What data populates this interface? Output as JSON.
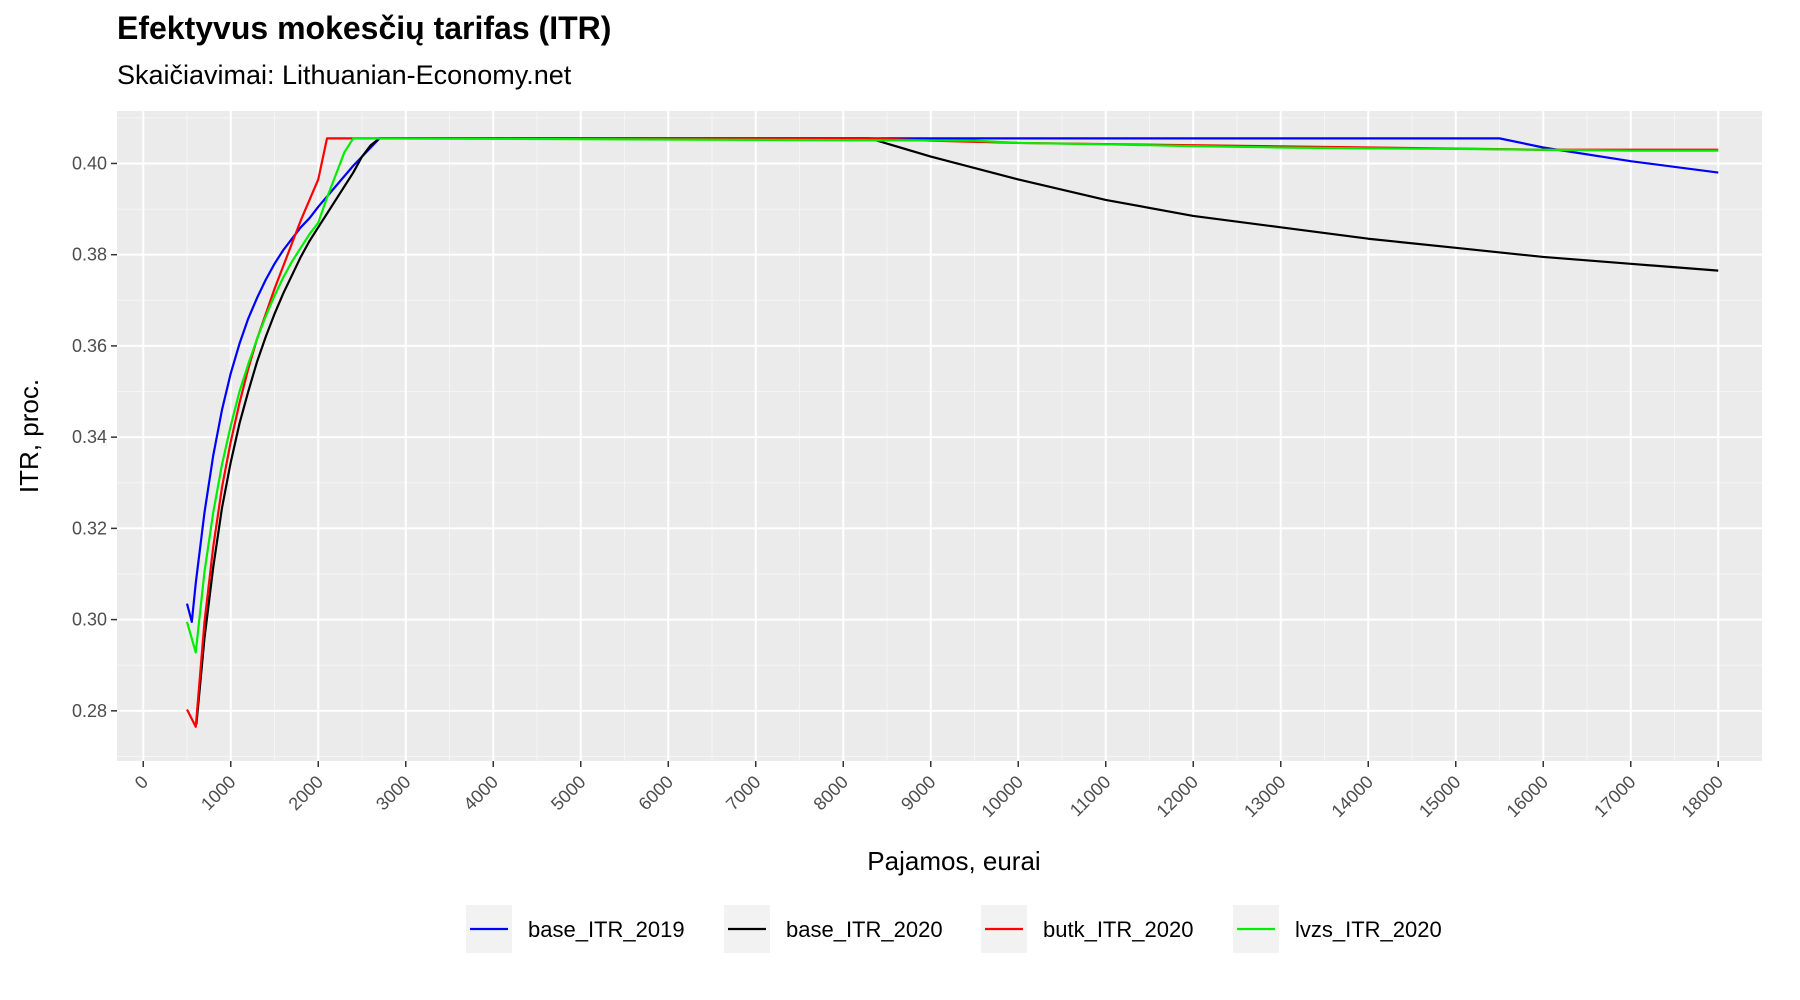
{
  "title": "Efektyvus mokesčių tarifas (ITR)",
  "subtitle": "Skaičiavimai: Lithuanian-Economy.net",
  "chart_data": {
    "type": "line",
    "xlabel": "Pajamos, eurai",
    "ylabel": "ITR, proc.",
    "xlim": [
      -300,
      18500
    ],
    "ylim": [
      0.269,
      0.4115
    ],
    "x_ticks": [
      "0",
      "1000",
      "2000",
      "3000",
      "4000",
      "5000",
      "6000",
      "7000",
      "8000",
      "9000",
      "10000",
      "11000",
      "12000",
      "13000",
      "14000",
      "15000",
      "16000",
      "17000",
      "18000"
    ],
    "y_ticks": [
      "0.28",
      "0.30",
      "0.32",
      "0.34",
      "0.36",
      "0.38",
      "0.40"
    ],
    "grid": true,
    "legend_position": "bottom",
    "series": [
      {
        "name": "base_ITR_2019",
        "color": "#0000ff",
        "points": [
          [
            500,
            0.3035
          ],
          [
            555,
            0.2995
          ],
          [
            600,
            0.308
          ],
          [
            700,
            0.3235
          ],
          [
            800,
            0.336
          ],
          [
            900,
            0.346
          ],
          [
            1000,
            0.354
          ],
          [
            1100,
            0.3605
          ],
          [
            1200,
            0.366
          ],
          [
            1300,
            0.3705
          ],
          [
            1400,
            0.3745
          ],
          [
            1500,
            0.378
          ],
          [
            1600,
            0.381
          ],
          [
            1700,
            0.3835
          ],
          [
            1800,
            0.386
          ],
          [
            1900,
            0.388
          ],
          [
            2000,
            0.3905
          ],
          [
            2200,
            0.395
          ],
          [
            2400,
            0.3995
          ],
          [
            2600,
            0.4035
          ],
          [
            2700,
            0.4055
          ],
          [
            15500,
            0.4055
          ],
          [
            16000,
            0.4035
          ],
          [
            17000,
            0.4005
          ],
          [
            18000,
            0.398
          ]
        ]
      },
      {
        "name": "base_ITR_2020",
        "color": "#000000",
        "points": [
          [
            607,
            0.277
          ],
          [
            700,
            0.296
          ],
          [
            800,
            0.3115
          ],
          [
            900,
            0.3245
          ],
          [
            1000,
            0.3345
          ],
          [
            1100,
            0.343
          ],
          [
            1200,
            0.35
          ],
          [
            1300,
            0.3565
          ],
          [
            1400,
            0.362
          ],
          [
            1500,
            0.367
          ],
          [
            1600,
            0.3715
          ],
          [
            1700,
            0.3755
          ],
          [
            1800,
            0.3795
          ],
          [
            1900,
            0.383
          ],
          [
            2000,
            0.386
          ],
          [
            2100,
            0.389
          ],
          [
            2200,
            0.392
          ],
          [
            2300,
            0.395
          ],
          [
            2400,
            0.398
          ],
          [
            2500,
            0.4015
          ],
          [
            2600,
            0.404
          ],
          [
            2700,
            0.4055
          ],
          [
            8300,
            0.4055
          ],
          [
            9000,
            0.4015
          ],
          [
            10000,
            0.3965
          ],
          [
            11000,
            0.392
          ],
          [
            12000,
            0.3885
          ],
          [
            13000,
            0.386
          ],
          [
            14000,
            0.3835
          ],
          [
            15000,
            0.3815
          ],
          [
            16000,
            0.3795
          ],
          [
            17000,
            0.378
          ],
          [
            18000,
            0.3765
          ]
        ]
      },
      {
        "name": "butk_ITR_2020",
        "color": "#ff0000",
        "points": [
          [
            500,
            0.2803
          ],
          [
            600,
            0.2765
          ],
          [
            700,
            0.2995
          ],
          [
            800,
            0.316
          ],
          [
            900,
            0.329
          ],
          [
            1000,
            0.339
          ],
          [
            1100,
            0.3475
          ],
          [
            1200,
            0.355
          ],
          [
            1300,
            0.3615
          ],
          [
            1400,
            0.367
          ],
          [
            1500,
            0.3725
          ],
          [
            1600,
            0.3775
          ],
          [
            1700,
            0.3825
          ],
          [
            1800,
            0.3875
          ],
          [
            1900,
            0.392
          ],
          [
            2000,
            0.3965
          ],
          [
            2100,
            0.4055
          ],
          [
            8300,
            0.4055
          ],
          [
            9000,
            0.405
          ],
          [
            10000,
            0.4045
          ],
          [
            12000,
            0.404
          ],
          [
            14000,
            0.4035
          ],
          [
            16000,
            0.403
          ],
          [
            18000,
            0.403
          ]
        ]
      },
      {
        "name": "lvzs_ITR_2020",
        "color": "#00ee00",
        "points": [
          [
            500,
            0.2995
          ],
          [
            600,
            0.2928
          ],
          [
            700,
            0.3105
          ],
          [
            800,
            0.3235
          ],
          [
            900,
            0.334
          ],
          [
            1000,
            0.3425
          ],
          [
            1100,
            0.35
          ],
          [
            1200,
            0.356
          ],
          [
            1300,
            0.3615
          ],
          [
            1400,
            0.3665
          ],
          [
            1500,
            0.371
          ],
          [
            1600,
            0.375
          ],
          [
            1700,
            0.3785
          ],
          [
            1800,
            0.3815
          ],
          [
            1900,
            0.3845
          ],
          [
            2000,
            0.387
          ],
          [
            2100,
            0.3925
          ],
          [
            2200,
            0.3975
          ],
          [
            2300,
            0.4025
          ],
          [
            2400,
            0.4055
          ],
          [
            9500,
            0.405
          ],
          [
            10000,
            0.4045
          ],
          [
            11000,
            0.4042
          ],
          [
            12000,
            0.4038
          ],
          [
            13000,
            0.4035
          ],
          [
            14000,
            0.4033
          ],
          [
            15000,
            0.4032
          ],
          [
            16000,
            0.403
          ],
          [
            17000,
            0.4028
          ],
          [
            18000,
            0.4028
          ]
        ]
      }
    ]
  }
}
